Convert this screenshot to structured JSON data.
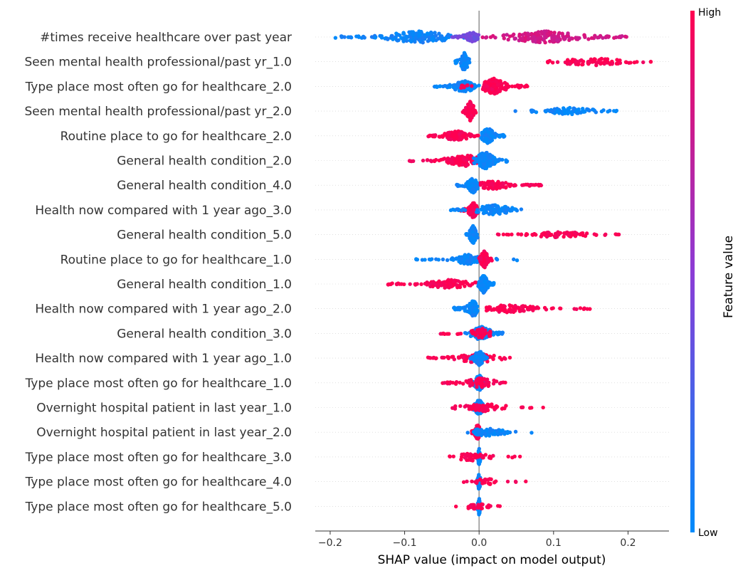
{
  "chart_data": {
    "type": "scatter",
    "subtype": "shap-beeswarm",
    "xlabel": "SHAP value (impact on model output)",
    "xlim": [
      -0.22,
      0.255
    ],
    "x_ticks": [
      -0.2,
      -0.1,
      0.0,
      0.1,
      0.2
    ],
    "x_tick_labels": [
      "−0.2",
      "−0.1",
      "0.0",
      "0.1",
      "0.2"
    ],
    "colorbar": {
      "title": "Feature value",
      "high_label": "High",
      "low_label": "Low",
      "low_color": "#008bfb",
      "high_color": "#ff0051"
    },
    "zero_line": 0.0,
    "features": [
      {
        "name": "#times receive healthcare over past year",
        "groups": [
          {
            "range": [
              -0.195,
              -0.02
            ],
            "n": 150,
            "v": 0.05,
            "hub": -0.08,
            "ht": 0.6
          },
          {
            "range": [
              -0.04,
              0.0
            ],
            "n": 55,
            "v": 0.4,
            "hub": -0.01,
            "ht": 0.5
          },
          {
            "range": [
              0.0,
              0.2
            ],
            "n": 170,
            "v": 0.8,
            "hub": 0.09,
            "ht": 0.6
          }
        ]
      },
      {
        "name": "Seen mental health professional/past yr_1.0",
        "groups": [
          {
            "range": [
              -0.032,
              -0.012
            ],
            "n": 70,
            "v": 0.02,
            "hub": -0.02,
            "ht": 1.0
          },
          {
            "range": [
              0.075,
              0.235
            ],
            "n": 90,
            "v": 0.99,
            "hub": 0.15,
            "ht": 0.4
          }
        ]
      },
      {
        "name": "Type place most often go for healthcare_2.0",
        "groups": [
          {
            "range": [
              -0.06,
              0.0
            ],
            "n": 110,
            "v": 0.03,
            "hub": -0.02,
            "ht": 0.6
          },
          {
            "range": [
              0.005,
              0.065
            ],
            "n": 130,
            "v": 0.99,
            "hub": 0.02,
            "ht": 0.8
          },
          {
            "range": [
              -0.03,
              -0.01
            ],
            "n": 8,
            "v": 0.99,
            "hub": -0.02,
            "ht": 0.3
          }
        ]
      },
      {
        "name": "Seen mental health professional/past yr_2.0",
        "groups": [
          {
            "range": [
              -0.022,
              -0.002
            ],
            "n": 90,
            "v": 0.99,
            "hub": -0.012,
            "ht": 1.0
          },
          {
            "range": [
              0.045,
              0.19
            ],
            "n": 85,
            "v": 0.03,
            "hub": 0.12,
            "ht": 0.35
          }
        ]
      },
      {
        "name": "Routine place to go for healthcare_2.0",
        "groups": [
          {
            "range": [
              -0.07,
              0.0
            ],
            "n": 100,
            "v": 0.99,
            "hub": -0.03,
            "ht": 0.5
          },
          {
            "range": [
              0.002,
              0.035
            ],
            "n": 100,
            "v": 0.03,
            "hub": 0.012,
            "ht": 0.8
          }
        ]
      },
      {
        "name": "General health condition_2.0",
        "groups": [
          {
            "range": [
              -0.095,
              -0.003
            ],
            "n": 110,
            "v": 0.99,
            "hub": -0.02,
            "ht": 0.6
          },
          {
            "range": [
              -0.008,
              0.038
            ],
            "n": 140,
            "v": 0.03,
            "hub": 0.008,
            "ht": 0.9
          }
        ]
      },
      {
        "name": "General health condition_4.0",
        "groups": [
          {
            "range": [
              -0.03,
              -0.002
            ],
            "n": 90,
            "v": 0.03,
            "hub": -0.008,
            "ht": 0.8
          },
          {
            "range": [
              0.002,
              0.085
            ],
            "n": 100,
            "v": 0.99,
            "hub": 0.02,
            "ht": 0.45
          }
        ]
      },
      {
        "name": "Health now compared with 1 year ago_3.0",
        "groups": [
          {
            "range": [
              -0.025,
              0.0
            ],
            "n": 90,
            "v": 0.99,
            "hub": -0.008,
            "ht": 0.8
          },
          {
            "range": [
              -0.04,
              0.06
            ],
            "n": 100,
            "v": 0.04,
            "hub": 0.02,
            "ht": 0.5
          }
        ]
      },
      {
        "name": "General health condition_5.0",
        "groups": [
          {
            "range": [
              -0.02,
              0.0
            ],
            "n": 90,
            "v": 0.03,
            "hub": -0.008,
            "ht": 0.9
          },
          {
            "range": [
              0.025,
              0.195
            ],
            "n": 80,
            "v": 0.99,
            "hub": 0.11,
            "ht": 0.3
          }
        ]
      },
      {
        "name": "Routine place to go for healthcare_1.0",
        "groups": [
          {
            "range": [
              -0.085,
              -0.002
            ],
            "n": 80,
            "v": 0.03,
            "hub": -0.015,
            "ht": 0.5
          },
          {
            "range": [
              0.0,
              0.018
            ],
            "n": 120,
            "v": 0.99,
            "hub": 0.007,
            "ht": 0.9
          },
          {
            "range": [
              0.02,
              0.075
            ],
            "n": 4,
            "v": 0.03,
            "hub": 0.04,
            "ht": 0.2
          }
        ]
      },
      {
        "name": "General health condition_1.0",
        "groups": [
          {
            "range": [
              -0.125,
              -0.003
            ],
            "n": 110,
            "v": 0.99,
            "hub": -0.04,
            "ht": 0.45
          },
          {
            "range": [
              -0.002,
              0.02
            ],
            "n": 120,
            "v": 0.03,
            "hub": 0.006,
            "ht": 0.9
          }
        ]
      },
      {
        "name": "Health now compared with 1 year ago_2.0",
        "groups": [
          {
            "range": [
              -0.035,
              -0.002
            ],
            "n": 90,
            "v": 0.03,
            "hub": -0.008,
            "ht": 0.8
          },
          {
            "range": [
              0.01,
              0.15
            ],
            "n": 95,
            "v": 0.99,
            "hub": 0.04,
            "ht": 0.4
          }
        ]
      },
      {
        "name": "General health condition_3.0",
        "groups": [
          {
            "range": [
              -0.02,
              0.032
            ],
            "n": 100,
            "v": 0.03,
            "hub": 0.003,
            "ht": 0.7
          },
          {
            "range": [
              -0.062,
              0.015
            ],
            "n": 50,
            "v": 0.99,
            "hub": 0.005,
            "ht": 0.5
          }
        ]
      },
      {
        "name": "Health now compared with 1 year ago_1.0",
        "groups": [
          {
            "range": [
              -0.075,
              0.042
            ],
            "n": 90,
            "v": 0.99,
            "hub": -0.003,
            "ht": 0.5
          },
          {
            "range": [
              -0.012,
              0.012
            ],
            "n": 80,
            "v": 0.03,
            "hub": 0.0,
            "ht": 0.8
          }
        ]
      },
      {
        "name": "Type place most often go for healthcare_1.0",
        "groups": [
          {
            "range": [
              -0.012,
              0.012
            ],
            "n": 90,
            "v": 0.03,
            "hub": 0.0,
            "ht": 0.8
          },
          {
            "range": [
              -0.05,
              0.038
            ],
            "n": 70,
            "v": 0.99,
            "hub": 0.0,
            "ht": 0.5
          }
        ]
      },
      {
        "name": "Overnight hospital patient in last year_1.0",
        "groups": [
          {
            "range": [
              -0.012,
              0.012
            ],
            "n": 90,
            "v": 0.03,
            "hub": 0.0,
            "ht": 0.8
          },
          {
            "range": [
              -0.038,
              0.09
            ],
            "n": 70,
            "v": 0.99,
            "hub": 0.005,
            "ht": 0.4
          }
        ]
      },
      {
        "name": "Overnight hospital patient in last year_2.0",
        "groups": [
          {
            "range": [
              -0.01,
              0.005
            ],
            "n": 90,
            "v": 0.99,
            "hub": -0.002,
            "ht": 0.8
          },
          {
            "range": [
              -0.028,
              0.072
            ],
            "n": 70,
            "v": 0.03,
            "hub": 0.01,
            "ht": 0.4
          }
        ]
      },
      {
        "name": "Type place most often go for healthcare_3.0",
        "groups": [
          {
            "range": [
              -0.003,
              0.003
            ],
            "n": 60,
            "v": 0.03,
            "hub": 0.0,
            "ht": 0.9
          },
          {
            "range": [
              -0.04,
              0.058
            ],
            "n": 50,
            "v": 0.99,
            "hub": -0.01,
            "ht": 0.4
          }
        ]
      },
      {
        "name": "Type place most often go for healthcare_4.0",
        "groups": [
          {
            "range": [
              -0.003,
              0.003
            ],
            "n": 60,
            "v": 0.03,
            "hub": 0.0,
            "ht": 0.9
          },
          {
            "range": [
              -0.022,
              0.068
            ],
            "n": 30,
            "v": 0.99,
            "hub": 0.01,
            "ht": 0.3
          }
        ]
      },
      {
        "name": "Type place most often go for healthcare_5.0",
        "groups": [
          {
            "range": [
              -0.003,
              0.003
            ],
            "n": 60,
            "v": 0.03,
            "hub": 0.0,
            "ht": 0.9
          },
          {
            "range": [
              -0.032,
              0.035
            ],
            "n": 30,
            "v": 0.99,
            "hub": -0.005,
            "ht": 0.3
          }
        ]
      }
    ]
  }
}
